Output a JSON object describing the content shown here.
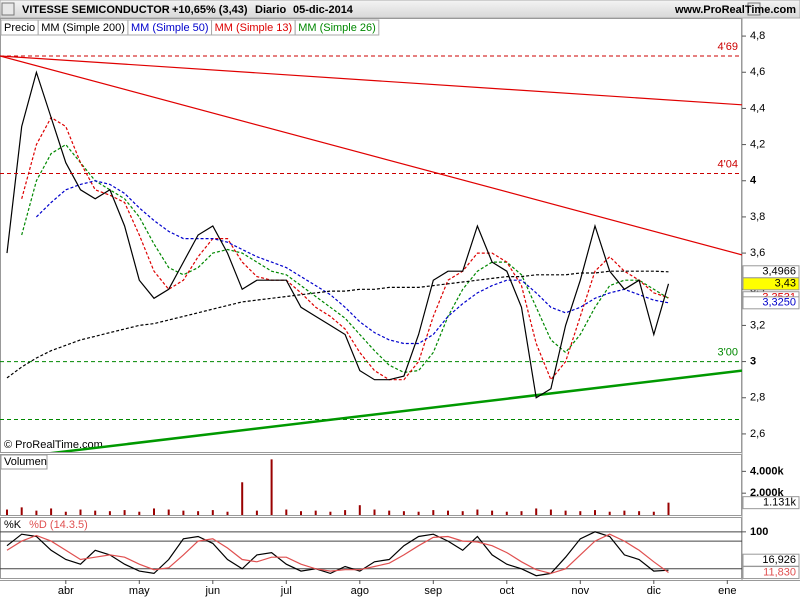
{
  "header": {
    "symbol": "VITESSE SEMICONDUCTOR",
    "change": "+10,65% (3,43)",
    "period": "Diario",
    "date": "05-dic-2014",
    "site": "www.ProRealTime.com"
  },
  "chart_data": [
    {
      "type": "line",
      "categories": [
        null,
        null,
        null,
        null,
        "abr",
        null,
        null,
        null,
        null,
        "may",
        null,
        null,
        null,
        null,
        "jun",
        null,
        null,
        null,
        null,
        "jul",
        null,
        null,
        null,
        null,
        "ago",
        null,
        null,
        null,
        null,
        "sep",
        null,
        null,
        null,
        null,
        "oct",
        null,
        null,
        null,
        null,
        "nov",
        null,
        null,
        null,
        null,
        "dic",
        null,
        null,
        null,
        null,
        "ene"
      ],
      "series": [
        {
          "name": "Precio",
          "color": "#000000",
          "style": "solid",
          "values": [
            3.6,
            4.3,
            4.6,
            4.35,
            4.1,
            3.95,
            3.9,
            3.95,
            3.75,
            3.45,
            3.35,
            3.4,
            3.55,
            3.7,
            3.75,
            3.6,
            3.4,
            3.45,
            3.45,
            3.45,
            3.3,
            3.25,
            3.2,
            3.15,
            2.95,
            2.9,
            2.9,
            2.92,
            3.15,
            3.45,
            3.5,
            3.5,
            3.75,
            3.55,
            3.5,
            3.3,
            2.8,
            2.85,
            3.2,
            3.45,
            3.75,
            3.5,
            3.4,
            3.45,
            3.15,
            3.43,
            null,
            null,
            null,
            null
          ]
        },
        {
          "name": "MM (Simple 200)",
          "color": "#000000",
          "style": "dashed",
          "values": [
            2.91,
            2.97,
            3.02,
            3.06,
            3.09,
            3.12,
            3.14,
            3.16,
            3.18,
            3.2,
            3.21,
            3.23,
            3.25,
            3.27,
            3.29,
            3.31,
            3.33,
            3.34,
            3.35,
            3.36,
            3.37,
            3.38,
            3.39,
            3.39,
            3.4,
            3.4,
            3.41,
            3.41,
            3.41,
            3.42,
            3.43,
            3.44,
            3.45,
            3.46,
            3.47,
            3.47,
            3.48,
            3.48,
            3.48,
            3.49,
            3.49,
            3.5,
            3.5,
            3.5,
            3.5,
            3.4966,
            null,
            null,
            null,
            null
          ]
        },
        {
          "name": "MM (Simple 50)",
          "color": "#0000cc",
          "style": "dashed",
          "values": [
            null,
            null,
            3.8,
            3.88,
            3.95,
            3.98,
            4.0,
            3.98,
            3.93,
            3.85,
            3.78,
            3.72,
            3.68,
            3.68,
            3.68,
            3.66,
            3.62,
            3.58,
            3.55,
            3.52,
            3.47,
            3.42,
            3.37,
            3.3,
            3.22,
            3.16,
            3.12,
            3.1,
            3.1,
            3.15,
            3.25,
            3.32,
            3.38,
            3.42,
            3.45,
            3.45,
            3.38,
            3.3,
            3.27,
            3.3,
            3.35,
            3.38,
            3.4,
            3.37,
            3.34,
            3.325,
            null,
            null,
            null,
            null
          ]
        },
        {
          "name": "MM (Simple 13)",
          "color": "#dd0000",
          "style": "dashed",
          "values": [
            null,
            3.9,
            4.2,
            4.35,
            4.3,
            4.1,
            3.95,
            3.92,
            3.88,
            3.7,
            3.5,
            3.4,
            3.45,
            3.58,
            3.68,
            3.68,
            3.55,
            3.47,
            3.45,
            3.45,
            3.38,
            3.3,
            3.25,
            3.18,
            3.05,
            2.95,
            2.9,
            2.9,
            3.0,
            3.25,
            3.45,
            3.5,
            3.6,
            3.6,
            3.55,
            3.42,
            3.1,
            2.9,
            3.0,
            3.25,
            3.5,
            3.58,
            3.5,
            3.45,
            3.38,
            3.3531,
            null,
            null,
            null,
            null
          ]
        },
        {
          "name": "MM (Simple 26)",
          "color": "#008800",
          "style": "dashed",
          "values": [
            null,
            3.7,
            4.0,
            4.15,
            4.2,
            4.1,
            4.0,
            3.95,
            3.9,
            3.8,
            3.65,
            3.52,
            3.48,
            3.52,
            3.6,
            3.62,
            3.6,
            3.55,
            3.5,
            3.48,
            3.42,
            3.36,
            3.3,
            3.24,
            3.15,
            3.06,
            2.98,
            2.94,
            2.95,
            3.05,
            3.25,
            3.4,
            3.5,
            3.55,
            3.55,
            3.48,
            3.3,
            3.12,
            3.05,
            3.15,
            3.3,
            3.42,
            3.45,
            3.45,
            3.4,
            3.35,
            null,
            null,
            null,
            null
          ]
        }
      ],
      "ylim": [
        2.5,
        4.9
      ],
      "yticks": [
        {
          "value": 4.8,
          "label": "4,8"
        },
        {
          "value": 4.6,
          "label": "4,6"
        },
        {
          "value": 4.4,
          "label": "4,4"
        },
        {
          "value": 4.2,
          "label": "4,2"
        },
        4,
        {
          "value": 3.8,
          "label": "3,8"
        },
        {
          "value": 3.6,
          "label": "3,6"
        },
        {
          "value": 3.4,
          "label": "3,4"
        },
        {
          "value": 3.2,
          "label": "3,2"
        },
        3,
        {
          "value": 2.8,
          "label": "2,8"
        },
        {
          "value": 2.6,
          "label": "2,6"
        }
      ],
      "levels": [
        {
          "value": 4.69,
          "label": "4'69",
          "color": "#cc0000"
        },
        {
          "value": 4.04,
          "label": "4'04",
          "color": "#cc0000"
        },
        {
          "value": 3.0,
          "label": "3'00",
          "color": "#008800"
        },
        {
          "value": 2.68,
          "color": "#008800"
        }
      ],
      "trendlines": [
        {
          "color": "#e00000",
          "start": 4.69,
          "end": 4.42
        },
        {
          "color": "#e00000",
          "start": 4.69,
          "end": 3.59
        },
        {
          "color": "#009900",
          "start": 2.46,
          "end": 2.95
        }
      ],
      "price_labels": [
        {
          "value": 3.35,
          "label": "3,35",
          "color": "#008800",
          "background": "#ffffff"
        },
        {
          "value": 3.4966,
          "label": "3,4966",
          "color": "#000000",
          "background": "#ffffff"
        },
        {
          "value": 3.43,
          "label": "3,43",
          "color": "#000000",
          "background": "#ffff00"
        },
        {
          "value": 3.3531,
          "label": "3,3531",
          "color": "#dd0000",
          "background": "#ffffff"
        },
        {
          "value": 3.325,
          "label": "3,3250",
          "color": "#0000cc",
          "background": "#ffffff"
        }
      ],
      "copyright": "© ProRealTime.com"
    },
    {
      "type": "bar",
      "title": "Volumen",
      "color": "#990000",
      "values": [
        500,
        700,
        400,
        600,
        300,
        500,
        400,
        350,
        450,
        300,
        600,
        500,
        400,
        350,
        450,
        300,
        3000,
        400,
        5100,
        500,
        350,
        400,
        300,
        450,
        900,
        500,
        400,
        350,
        300,
        450,
        400,
        350,
        500,
        400,
        300,
        350,
        600,
        500,
        400,
        350,
        450,
        300,
        400,
        350,
        300,
        1131,
        null,
        null,
        null,
        null
      ],
      "last_label": "1.131k",
      "ylim": [
        0,
        5500
      ],
      "yticks": [
        {
          "value": 4000,
          "label": "4.000k"
        },
        {
          "value": 2000,
          "label": "2.000k"
        }
      ]
    },
    {
      "type": "line",
      "series": [
        {
          "name": "%K",
          "color": "#000000",
          "last_label": "16,926",
          "values": [
            70,
            95,
            90,
            60,
            40,
            30,
            60,
            50,
            30,
            15,
            10,
            40,
            85,
            90,
            75,
            40,
            20,
            50,
            55,
            30,
            15,
            20,
            10,
            25,
            15,
            35,
            40,
            70,
            90,
            95,
            80,
            60,
            90,
            50,
            30,
            20,
            5,
            10,
            45,
            85,
            100,
            90,
            50,
            40,
            15,
            16.926,
            null,
            null,
            null,
            null
          ]
        },
        {
          "name": "%D (14.3.5)",
          "color": "#e05050",
          "last_label": "11,830",
          "values": [
            60,
            80,
            92,
            80,
            60,
            40,
            45,
            50,
            45,
            30,
            18,
            22,
            50,
            80,
            85,
            65,
            40,
            35,
            45,
            45,
            30,
            20,
            15,
            18,
            18,
            25,
            32,
            50,
            70,
            88,
            90,
            80,
            78,
            70,
            55,
            35,
            18,
            10,
            20,
            50,
            80,
            95,
            80,
            60,
            35,
            11.83,
            null,
            null,
            null,
            null
          ]
        }
      ],
      "ylim": [
        0,
        130
      ],
      "yticks": [
        100
      ],
      "levels": [
        80,
        20
      ]
    }
  ]
}
